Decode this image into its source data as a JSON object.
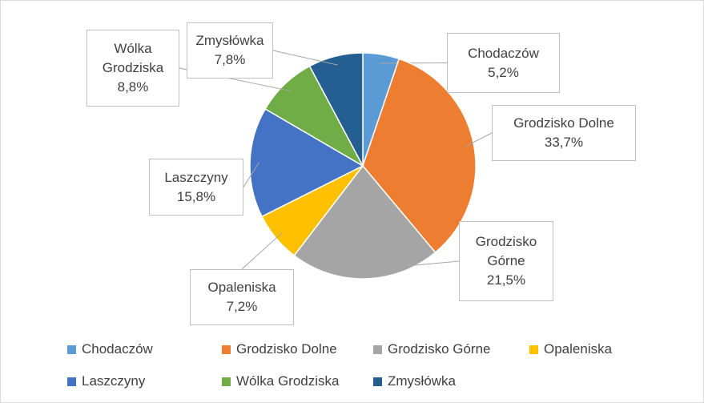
{
  "chart_data": {
    "type": "pie",
    "categories": [
      "Chodaczów",
      "Grodzisko Dolne",
      "Grodzisko Górne",
      "Opaleniska",
      "Laszczyny",
      "Wólka Grodziska",
      "Zmysłówka"
    ],
    "values": [
      5.2,
      33.7,
      21.5,
      7.2,
      15.8,
      8.8,
      7.8
    ],
    "value_labels": [
      "5,2%",
      "33,7%",
      "21,5%",
      "7,2%",
      "15,8%",
      "8,8%",
      "7,8%"
    ],
    "colors": [
      "#5b9bd5",
      "#ed7d31",
      "#a5a5a5",
      "#ffc000",
      "#4472c4",
      "#70ad47",
      "#255e91"
    ],
    "legend": "bottom"
  }
}
